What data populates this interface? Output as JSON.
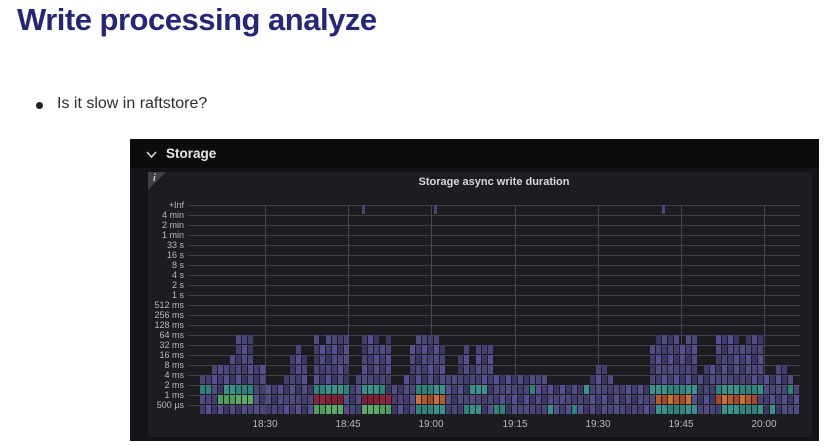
{
  "slide": {
    "title": "Write processing analyze",
    "title_color": "#262678",
    "bullet": "Is it slow in raftstore?"
  },
  "dashboard": {
    "row_label": "Storage",
    "panel_title": "Storage async write duration",
    "info_badge": "i"
  },
  "chart_data": {
    "type": "heatmap",
    "title": "Storage async write duration",
    "x_ticks": [
      "18:30",
      "18:45",
      "19:00",
      "19:15",
      "19:30",
      "19:45",
      "20:00"
    ],
    "y_buckets": [
      "+Inf",
      "4 min",
      "2 min",
      "1 min",
      "33 s",
      "16 s",
      "8 s",
      "4 s",
      "2 s",
      "1 s",
      "512 ms",
      "256 ms",
      "128 ms",
      "64 ms",
      "32 ms",
      "16 ms",
      "8 ms",
      "4 ms",
      "2 ms",
      "1 ms",
      "500 µs"
    ],
    "x_range_estimate": [
      "18:20",
      "20:06"
    ],
    "rows_bottom_up": [
      "500 µs",
      "1 ms",
      "2 ms",
      "4 ms",
      "8 ms",
      "16 ms",
      "32 ms",
      "64 ms"
    ],
    "legend_position": "none",
    "grid": true,
    "density_segments": [
      {
        "from": 0,
        "to": 1,
        "h": 4
      },
      {
        "from": 2,
        "to": 4,
        "h": 5
      },
      {
        "from": 5,
        "to": 5,
        "h": 6
      },
      {
        "from": 6,
        "to": 8,
        "h": 8
      },
      {
        "from": 9,
        "to": 10,
        "h": 5
      },
      {
        "from": 11,
        "to": 13,
        "h": 3
      },
      {
        "from": 14,
        "to": 14,
        "h": 4
      },
      {
        "from": 15,
        "to": 15,
        "h": 6
      },
      {
        "from": 16,
        "to": 16,
        "h": 7
      },
      {
        "from": 17,
        "to": 17,
        "h": 6
      },
      {
        "from": 18,
        "to": 18,
        "h": 3
      },
      {
        "from": 19,
        "to": 24,
        "h": 8
      },
      {
        "from": 25,
        "to": 25,
        "h": 3
      },
      {
        "from": 26,
        "to": 26,
        "h": 4
      },
      {
        "from": 27,
        "to": 31,
        "h": 8
      },
      {
        "from": 32,
        "to": 33,
        "h": 3
      },
      {
        "from": 34,
        "to": 34,
        "h": 4
      },
      {
        "from": 35,
        "to": 40,
        "h": 8
      },
      {
        "from": 41,
        "to": 42,
        "h": 4
      },
      {
        "from": 43,
        "to": 43,
        "h": 6
      },
      {
        "from": 44,
        "to": 44,
        "h": 7
      },
      {
        "from": 45,
        "to": 45,
        "h": 5
      },
      {
        "from": 46,
        "to": 48,
        "h": 7
      },
      {
        "from": 49,
        "to": 57,
        "h": 4
      },
      {
        "from": 58,
        "to": 64,
        "h": 3
      },
      {
        "from": 65,
        "to": 65,
        "h": 4
      },
      {
        "from": 66,
        "to": 67,
        "h": 5
      },
      {
        "from": 68,
        "to": 68,
        "h": 4
      },
      {
        "from": 69,
        "to": 74,
        "h": 3
      },
      {
        "from": 75,
        "to": 82,
        "h": 8
      },
      {
        "from": 83,
        "to": 83,
        "h": 4
      },
      {
        "from": 84,
        "to": 85,
        "h": 5
      },
      {
        "from": 86,
        "to": 93,
        "h": 8
      },
      {
        "from": 94,
        "to": 95,
        "h": 4
      },
      {
        "from": 96,
        "to": 97,
        "h": 5
      },
      {
        "from": 98,
        "to": 98,
        "h": 4
      },
      {
        "from": 99,
        "to": 99,
        "h": 3
      }
    ],
    "cell_overrides": [
      {
        "row": 2,
        "from": 0,
        "to": 1,
        "color": "teal"
      },
      {
        "row": 1,
        "from": 3,
        "to": 8,
        "color": "green"
      },
      {
        "row": 2,
        "from": 4,
        "to": 8,
        "color": "teal"
      },
      {
        "row": 1,
        "from": 19,
        "to": 23,
        "color": "red"
      },
      {
        "row": 0,
        "from": 19,
        "to": 23,
        "color": "green"
      },
      {
        "row": 2,
        "from": 19,
        "to": 24,
        "color": "teal"
      },
      {
        "row": 1,
        "from": 27,
        "to": 31,
        "color": "red"
      },
      {
        "row": 0,
        "from": 27,
        "to": 31,
        "color": "green"
      },
      {
        "row": 2,
        "from": 27,
        "to": 30,
        "color": "teal"
      },
      {
        "row": 1,
        "from": 36,
        "to": 40,
        "color": "orange"
      },
      {
        "row": 2,
        "from": 36,
        "to": 40,
        "color": "teal"
      },
      {
        "row": 0,
        "from": 36,
        "to": 40,
        "color": "teal"
      },
      {
        "row": 2,
        "from": 45,
        "to": 47,
        "color": "teal"
      },
      {
        "row": 0,
        "from": 44,
        "to": 46,
        "color": "teal"
      },
      {
        "row": 0,
        "from": 49,
        "to": 50,
        "color": "teal"
      },
      {
        "row": 2,
        "from": 55,
        "to": 55,
        "color": "teal"
      },
      {
        "row": 0,
        "from": 58,
        "to": 58,
        "color": "teal"
      },
      {
        "row": 0,
        "from": 62,
        "to": 62,
        "color": "teal"
      },
      {
        "row": 2,
        "from": 64,
        "to": 64,
        "color": "teal"
      },
      {
        "row": 2,
        "from": 75,
        "to": 82,
        "color": "teal"
      },
      {
        "row": 1,
        "from": 76,
        "to": 81,
        "color": "orange"
      },
      {
        "row": 0,
        "from": 76,
        "to": 82,
        "color": "teal"
      },
      {
        "row": 2,
        "from": 86,
        "to": 93,
        "color": "teal"
      },
      {
        "row": 1,
        "from": 86,
        "to": 92,
        "color": "orange"
      },
      {
        "row": 0,
        "from": 87,
        "to": 93,
        "color": "teal"
      },
      {
        "row": 0,
        "from": 95,
        "to": 95,
        "color": "teal"
      },
      {
        "row": 2,
        "from": 98,
        "to": 98,
        "color": "teal"
      }
    ],
    "top_bucket_marks": [
      27,
      39,
      77
    ],
    "palette": {
      "base": [
        "#433e6d",
        "#4b4679",
        "#524c84",
        "#3c3764",
        "#565093"
      ],
      "teal": [
        "#2f837d",
        "#38938b"
      ],
      "green": [
        "#4f9e5f",
        "#58a96a"
      ],
      "red": [
        "#7e1f36",
        "#8e2540"
      ],
      "orange": [
        "#b45a28",
        "#c9732f",
        "#a84526"
      ]
    }
  }
}
